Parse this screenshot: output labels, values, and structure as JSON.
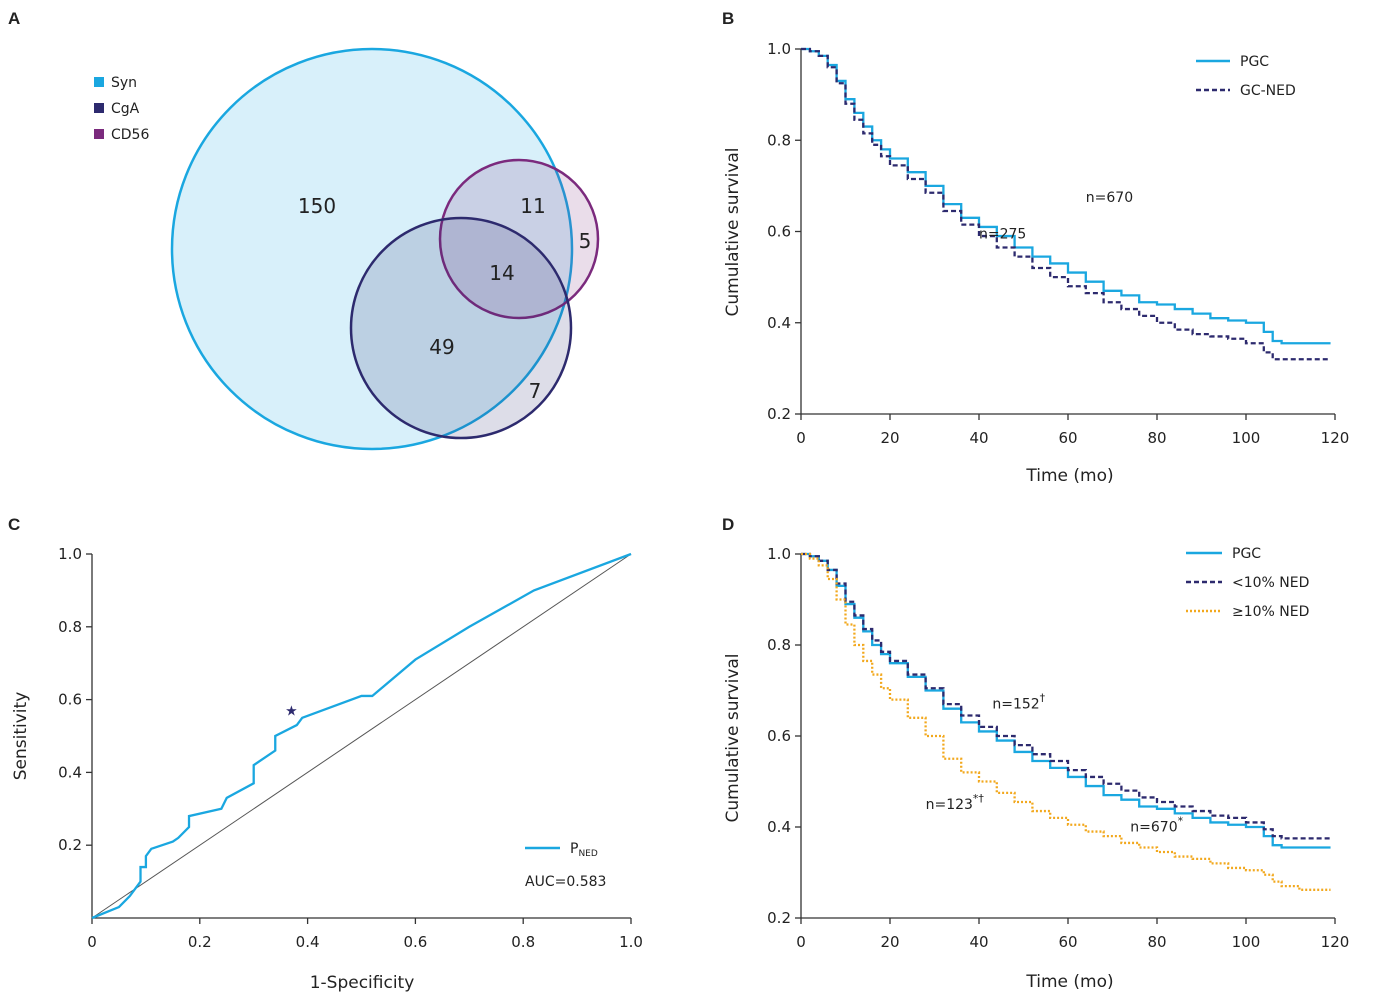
{
  "colors": {
    "syn": "#1aa7e0",
    "cga": "#2d2a6e",
    "cd56": "#7b2a7d",
    "orange": "#f2a81d",
    "axis": "#333333",
    "diag": "#555555"
  },
  "chart_data": [
    {
      "panel": "A",
      "type": "venn",
      "legend": [
        {
          "name": "Syn",
          "color": "#1aa7e0"
        },
        {
          "name": "CgA",
          "color": "#2d2a6e"
        },
        {
          "name": "CD56",
          "color": "#7b2a7d"
        }
      ],
      "regions": {
        "syn_only": "150",
        "syn_cd56": "11",
        "cd56_only": "5",
        "all_three": "14",
        "syn_cga": "49",
        "cga_only": "7"
      }
    },
    {
      "panel": "B",
      "type": "line",
      "xlabel": "Time (mo)",
      "ylabel": "Cumulative survival",
      "xlim": [
        0,
        120
      ],
      "ylim": [
        0.2,
        1.0
      ],
      "xticks": [
        "0",
        "20",
        "40",
        "60",
        "80",
        "100",
        "120"
      ],
      "yticks": [
        "0.2",
        "0.4",
        "0.6",
        "0.8",
        "1.0"
      ],
      "legend_position": "top-right",
      "series": [
        {
          "name": "PGC",
          "style": "solid",
          "color": "#1aa7e0",
          "x": [
            0,
            2,
            4,
            6,
            8,
            10,
            12,
            14,
            16,
            18,
            20,
            24,
            28,
            32,
            36,
            40,
            44,
            48,
            52,
            56,
            60,
            64,
            68,
            72,
            76,
            80,
            84,
            88,
            92,
            96,
            100,
            104,
            106,
            108,
            112,
            116,
            119
          ],
          "y": [
            1.0,
            0.995,
            0.985,
            0.965,
            0.93,
            0.89,
            0.86,
            0.83,
            0.8,
            0.78,
            0.76,
            0.73,
            0.7,
            0.66,
            0.63,
            0.61,
            0.59,
            0.565,
            0.545,
            0.53,
            0.51,
            0.49,
            0.47,
            0.46,
            0.445,
            0.44,
            0.43,
            0.42,
            0.41,
            0.405,
            0.4,
            0.38,
            0.36,
            0.355,
            0.355,
            0.355,
            0.355
          ]
        },
        {
          "name": "GC-NED",
          "style": "dashed",
          "color": "#2d2a6e",
          "x": [
            0,
            2,
            4,
            6,
            8,
            10,
            12,
            14,
            16,
            18,
            20,
            24,
            28,
            32,
            36,
            40,
            44,
            48,
            52,
            56,
            60,
            64,
            68,
            72,
            76,
            80,
            84,
            88,
            92,
            96,
            100,
            104,
            106,
            108,
            112,
            116,
            119
          ],
          "y": [
            1.0,
            0.995,
            0.985,
            0.96,
            0.925,
            0.88,
            0.845,
            0.815,
            0.79,
            0.765,
            0.745,
            0.715,
            0.685,
            0.645,
            0.615,
            0.59,
            0.565,
            0.545,
            0.52,
            0.5,
            0.48,
            0.465,
            0.445,
            0.43,
            0.415,
            0.4,
            0.385,
            0.375,
            0.37,
            0.365,
            0.355,
            0.335,
            0.32,
            0.32,
            0.32,
            0.32,
            0.32
          ]
        }
      ],
      "annotations": [
        {
          "text": "n=670",
          "x": 64,
          "y": 0.665
        },
        {
          "text": "n=275",
          "x": 40,
          "y": 0.585
        }
      ]
    },
    {
      "panel": "C",
      "type": "line",
      "xlabel": "1-Specificity",
      "ylabel": "Sensitivity",
      "xlim": [
        0,
        1.0
      ],
      "ylim": [
        0,
        1.0
      ],
      "xticks": [
        "0",
        "0.2",
        "0.4",
        "0.6",
        "0.8",
        "1.0"
      ],
      "yticks": [
        "0.2",
        "0.4",
        "0.6",
        "0.8",
        "1.0"
      ],
      "legend_position": "bottom-right",
      "series": [
        {
          "name": "P",
          "name_subscript": "NED",
          "color": "#1aa7e0",
          "x": [
            0,
            0.05,
            0.07,
            0.09,
            0.09,
            0.1,
            0.1,
            0.11,
            0.15,
            0.16,
            0.18,
            0.18,
            0.24,
            0.25,
            0.3,
            0.3,
            0.33,
            0.34,
            0.34,
            0.38,
            0.39,
            0.5,
            0.52,
            0.6,
            0.7,
            0.82,
            1.0
          ],
          "y": [
            0,
            0.03,
            0.06,
            0.1,
            0.14,
            0.14,
            0.17,
            0.19,
            0.21,
            0.22,
            0.25,
            0.28,
            0.3,
            0.33,
            0.37,
            0.42,
            0.45,
            0.46,
            0.5,
            0.53,
            0.55,
            0.61,
            0.61,
            0.71,
            0.8,
            0.9,
            1.0
          ]
        }
      ],
      "reference_line": {
        "x": [
          0,
          1
        ],
        "y": [
          0,
          1
        ]
      },
      "marker": {
        "x": 0.37,
        "y": 0.57,
        "symbol": "star"
      },
      "annotations": [
        {
          "text": "AUC=0.583"
        }
      ]
    },
    {
      "panel": "D",
      "type": "line",
      "xlabel": "Time (mo)",
      "ylabel": "Cumulative survival",
      "xlim": [
        0,
        120
      ],
      "ylim": [
        0.2,
        1.0
      ],
      "xticks": [
        "0",
        "20",
        "40",
        "60",
        "80",
        "100",
        "120"
      ],
      "yticks": [
        "0.2",
        "0.4",
        "0.6",
        "0.8",
        "1.0"
      ],
      "legend_position": "top-right",
      "series": [
        {
          "name": "PGC",
          "style": "solid",
          "color": "#1aa7e0",
          "x": [
            0,
            2,
            4,
            6,
            8,
            10,
            12,
            14,
            16,
            18,
            20,
            24,
            28,
            32,
            36,
            40,
            44,
            48,
            52,
            56,
            60,
            64,
            68,
            72,
            76,
            80,
            84,
            88,
            92,
            96,
            100,
            104,
            106,
            108,
            112,
            116,
            119
          ],
          "y": [
            1.0,
            0.995,
            0.985,
            0.965,
            0.93,
            0.89,
            0.86,
            0.83,
            0.8,
            0.78,
            0.76,
            0.73,
            0.7,
            0.66,
            0.63,
            0.61,
            0.59,
            0.565,
            0.545,
            0.53,
            0.51,
            0.49,
            0.47,
            0.46,
            0.445,
            0.44,
            0.43,
            0.42,
            0.41,
            0.405,
            0.4,
            0.38,
            0.36,
            0.355,
            0.355,
            0.355,
            0.355
          ]
        },
        {
          "name": "<10% NED",
          "style": "dashed",
          "color": "#2d2a6e",
          "x": [
            0,
            2,
            4,
            6,
            8,
            10,
            12,
            14,
            16,
            18,
            20,
            24,
            28,
            32,
            36,
            40,
            44,
            48,
            52,
            56,
            60,
            64,
            68,
            72,
            76,
            80,
            84,
            88,
            92,
            96,
            100,
            104,
            106,
            108,
            112,
            116,
            119
          ],
          "y": [
            1.0,
            0.995,
            0.985,
            0.965,
            0.935,
            0.895,
            0.865,
            0.835,
            0.81,
            0.785,
            0.765,
            0.735,
            0.705,
            0.67,
            0.645,
            0.62,
            0.6,
            0.58,
            0.56,
            0.545,
            0.525,
            0.51,
            0.495,
            0.48,
            0.465,
            0.455,
            0.445,
            0.435,
            0.425,
            0.42,
            0.41,
            0.395,
            0.38,
            0.375,
            0.375,
            0.375,
            0.375
          ]
        },
        {
          "name": "≥10% NED",
          "style": "dotted",
          "color": "#f2a81d",
          "x": [
            0,
            2,
            4,
            6,
            8,
            10,
            12,
            14,
            16,
            18,
            20,
            24,
            28,
            32,
            36,
            40,
            44,
            48,
            52,
            56,
            60,
            64,
            68,
            72,
            76,
            80,
            84,
            88,
            92,
            96,
            100,
            104,
            106,
            108,
            112,
            116,
            119
          ],
          "y": [
            1.0,
            0.99,
            0.975,
            0.945,
            0.9,
            0.845,
            0.8,
            0.765,
            0.735,
            0.705,
            0.68,
            0.64,
            0.6,
            0.55,
            0.52,
            0.5,
            0.475,
            0.455,
            0.435,
            0.42,
            0.405,
            0.39,
            0.38,
            0.365,
            0.355,
            0.345,
            0.335,
            0.33,
            0.32,
            0.31,
            0.305,
            0.295,
            0.28,
            0.27,
            0.262,
            0.262,
            0.262
          ]
        }
      ],
      "annotations": [
        {
          "text": "n=152",
          "sup": "†",
          "x": 43,
          "y": 0.66
        },
        {
          "text": "n=123",
          "sup": "*†",
          "x": 28,
          "y": 0.44
        },
        {
          "text": "n=670",
          "sup": "*",
          "x": 74,
          "y": 0.39
        }
      ]
    }
  ]
}
